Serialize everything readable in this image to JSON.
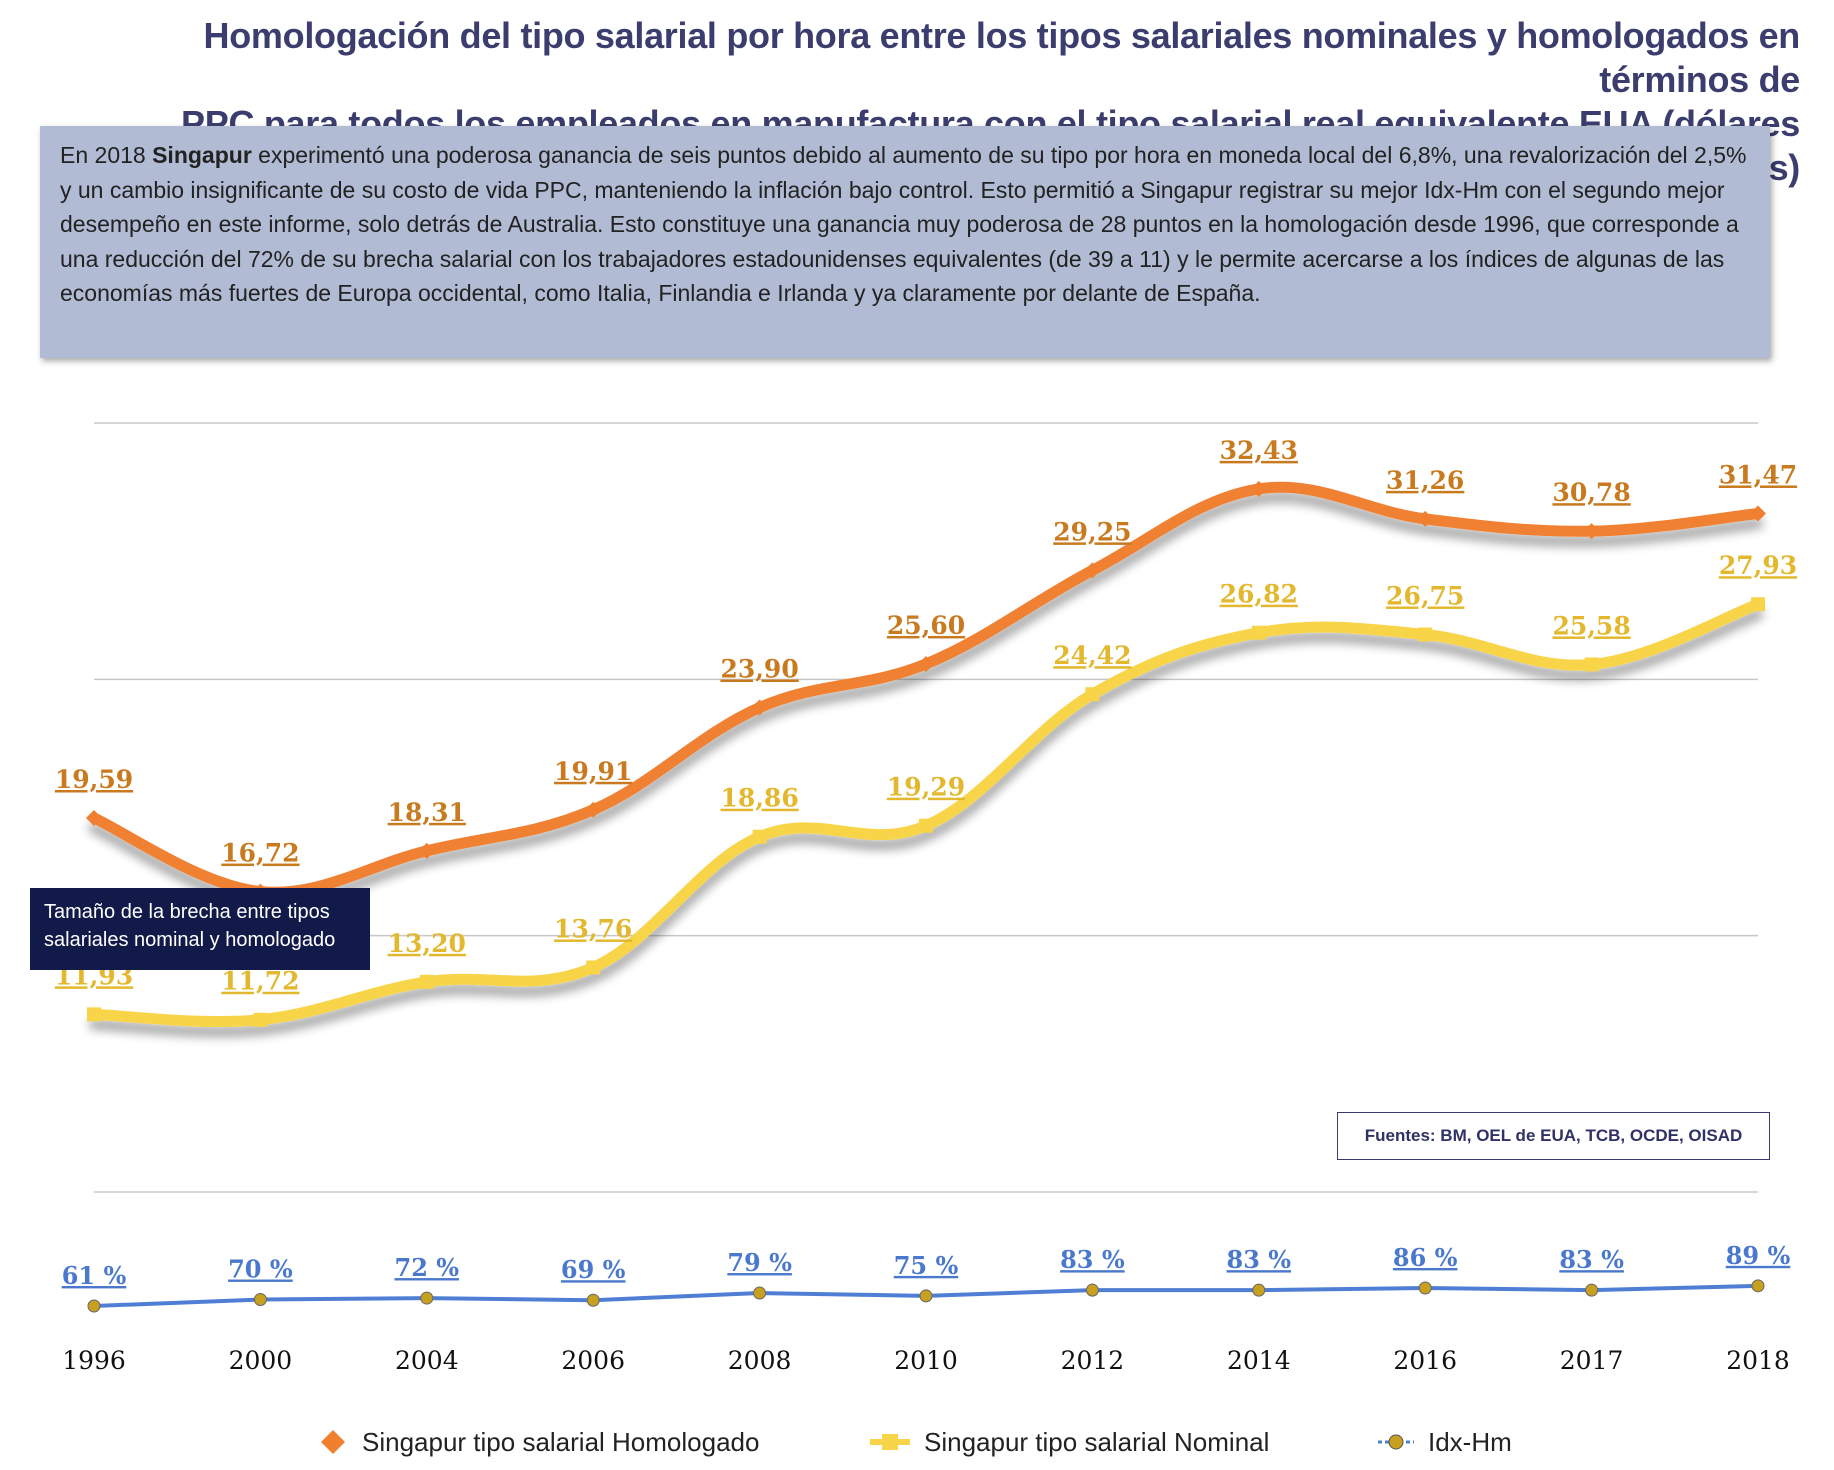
{
  "title": {
    "line1": "Homologación del tipo salarial por hora entre los tipos salariales nominales y homologados en términos de",
    "line2": "PPC para todos los empleados en manufactura con el tipo salarial real equivalente EUA (dólares corrientes)"
  },
  "description": {
    "prefix": "En 2018 ",
    "bold": "Singapur",
    "text": " experimentó una poderosa ganancia de seis puntos debido al aumento de su tipo por hora en moneda local del 6,8%, una revalorización del 2,5% y un cambio insignificante de su costo de vida PPC, manteniendo la inflación bajo control. Esto permitió a Singapur registrar su mejor Idx-Hm con el segundo mejor desempeño en este informe, solo detrás de Australia. Esto constituye una ganancia muy poderosa de 28 puntos en la homologación desde 1996, que corresponde a una reducción del 72% de su brecha salarial con los trabajadores estadounidenses equivalentes (de 39 a 11) y le permite acercarse a los índices de algunas de las economías más fuertes de Europa occidental, como Italia, Finlandia e Irlanda y ya claramente por delante de España."
  },
  "gap_box": {
    "line1": "Tamaño de la brecha entre tipos",
    "line2": "salariales nominal y homologado"
  },
  "sources": "Fuentes: BM, OEL de EUA, TCB, OCDE, OISAD",
  "colors": {
    "homologado": "#f08030",
    "homologado_label": "#c97a1e",
    "nominal": "#f8d448",
    "nominal_label": "#e3b82e",
    "idx": "#4f7fd4",
    "idx_label": "#4a78cc",
    "idx_marker": "#c8a020"
  },
  "chart_data": [
    {
      "type": "line",
      "title": "Homologación del tipo salarial por hora (dólares corrientes)",
      "categories": [
        "1996",
        "2000",
        "2004",
        "2006",
        "2008",
        "2010",
        "2012",
        "2014",
        "2016",
        "2017",
        "2018"
      ],
      "ylim": [
        5,
        35
      ],
      "grid": true,
      "series": [
        {
          "name": "Singapur tipo salarial Homologado",
          "values": [
            19.59,
            16.72,
            18.31,
            19.91,
            23.9,
            25.6,
            29.25,
            32.43,
            31.26,
            30.78,
            31.47
          ],
          "labels": [
            "19,59",
            "16,72",
            "18,31",
            "19,91",
            "23,90",
            "25,60",
            "29,25",
            "32,43",
            "31,26",
            "30,78",
            "31,47"
          ]
        },
        {
          "name": "Singapur tipo salarial Nominal",
          "values": [
            11.93,
            11.72,
            13.2,
            13.76,
            18.86,
            19.29,
            24.42,
            26.82,
            26.75,
            25.58,
            27.93
          ],
          "labels": [
            "11,93",
            "11,72",
            "13,20",
            "13,76",
            "18,86",
            "19,29",
            "24,42",
            "26,82",
            "26,75",
            "25,58",
            "27,93"
          ]
        }
      ]
    },
    {
      "type": "line",
      "title": "Idx-Hm",
      "categories": [
        "1996",
        "2000",
        "2004",
        "2006",
        "2008",
        "2010",
        "2012",
        "2014",
        "2016",
        "2017",
        "2018"
      ],
      "ylim": [
        0,
        100
      ],
      "series": [
        {
          "name": "Idx-Hm",
          "values": [
            61,
            70,
            72,
            69,
            79,
            75,
            83,
            83,
            86,
            83,
            89
          ],
          "labels": [
            "61 %",
            "70 %",
            "72 %",
            "69 %",
            "79 %",
            "75 %",
            "83 %",
            "83 %",
            "86 %",
            "83 %",
            "89 %"
          ]
        }
      ]
    }
  ],
  "legend": {
    "homologado": "Singapur tipo salarial Homologado",
    "nominal": "Singapur tipo salarial Nominal",
    "idx": "Idx-Hm"
  }
}
